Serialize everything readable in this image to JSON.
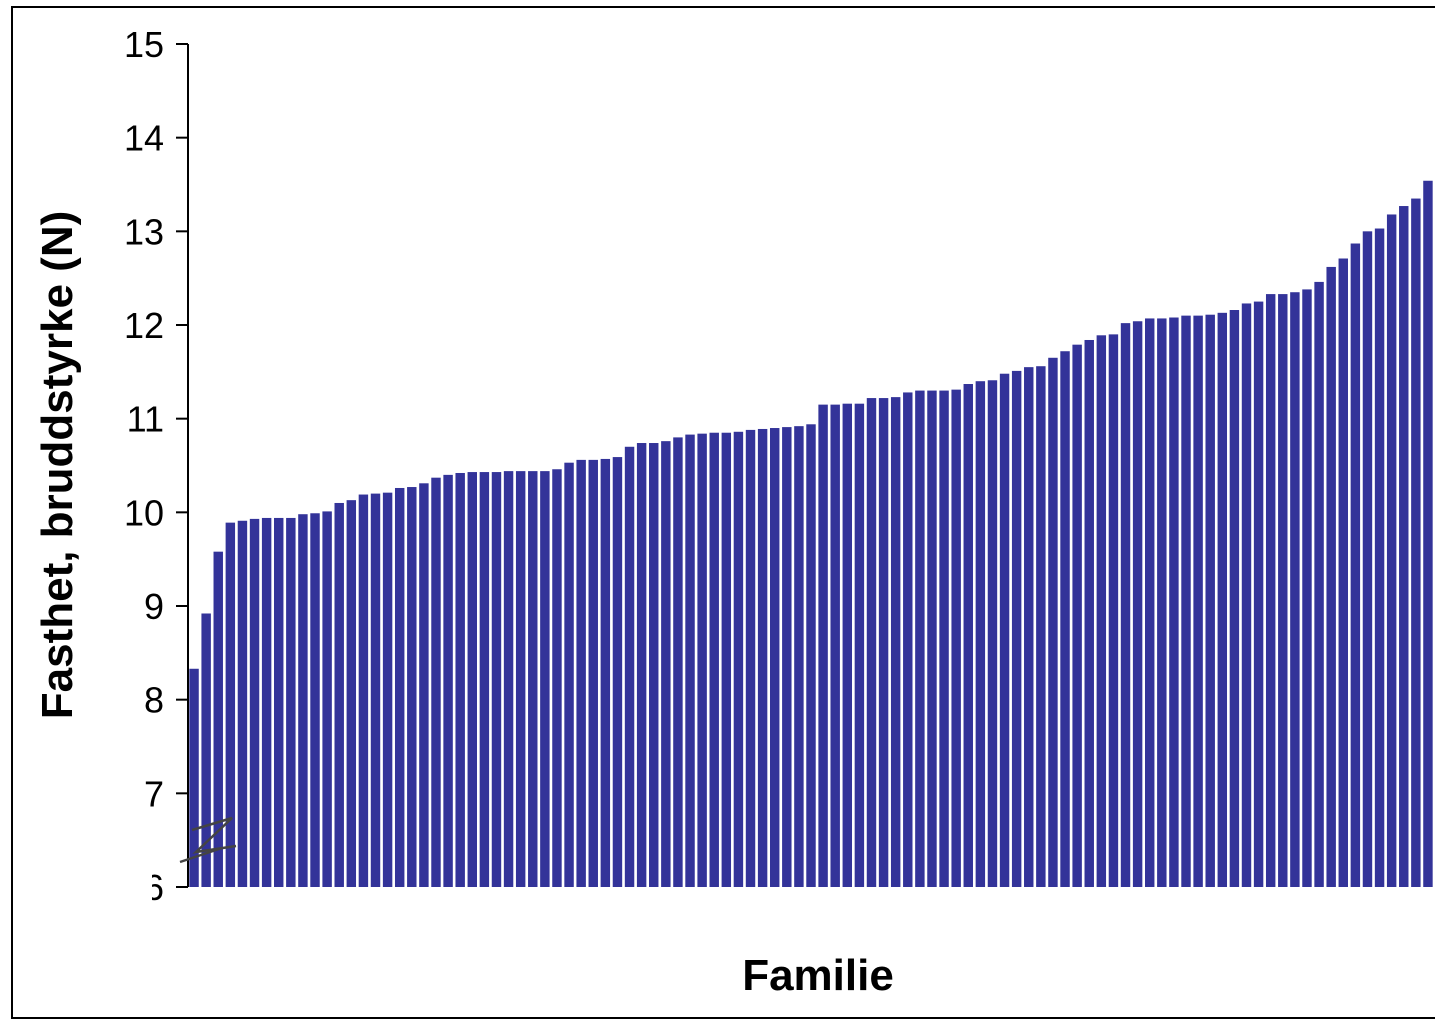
{
  "chart_data": {
    "type": "bar",
    "title": "",
    "xlabel": "Familie",
    "ylabel": "Fasthet, bruddstyrke (N)",
    "ylim": [
      6,
      15
    ],
    "yticks": [
      "6",
      "7",
      "8",
      "9",
      "10",
      "11",
      "12",
      "13",
      "14",
      "15"
    ],
    "axis_break": true,
    "bar_color": "#333399",
    "grid": false,
    "legend": "none",
    "values": [
      8.33,
      8.92,
      9.58,
      9.89,
      9.91,
      9.93,
      9.94,
      9.94,
      9.94,
      9.98,
      9.99,
      10.01,
      10.1,
      10.13,
      10.19,
      10.2,
      10.21,
      10.26,
      10.27,
      10.31,
      10.37,
      10.4,
      10.42,
      10.43,
      10.43,
      10.43,
      10.44,
      10.44,
      10.44,
      10.44,
      10.46,
      10.53,
      10.56,
      10.56,
      10.57,
      10.59,
      10.7,
      10.74,
      10.74,
      10.76,
      10.8,
      10.83,
      10.84,
      10.85,
      10.85,
      10.86,
      10.88,
      10.89,
      10.9,
      10.91,
      10.92,
      10.94,
      11.15,
      11.15,
      11.16,
      11.16,
      11.22,
      11.22,
      11.23,
      11.28,
      11.3,
      11.3,
      11.3,
      11.31,
      11.37,
      11.4,
      11.41,
      11.48,
      11.51,
      11.55,
      11.56,
      11.65,
      11.72,
      11.79,
      11.84,
      11.89,
      11.9,
      12.02,
      12.04,
      12.07,
      12.07,
      12.08,
      12.1,
      12.1,
      12.11,
      12.13,
      12.16,
      12.23,
      12.25,
      12.33,
      12.33,
      12.35,
      12.38,
      12.46,
      12.62,
      12.71,
      12.87,
      13.0,
      13.03,
      13.18,
      13.27,
      13.35,
      13.54
    ]
  }
}
